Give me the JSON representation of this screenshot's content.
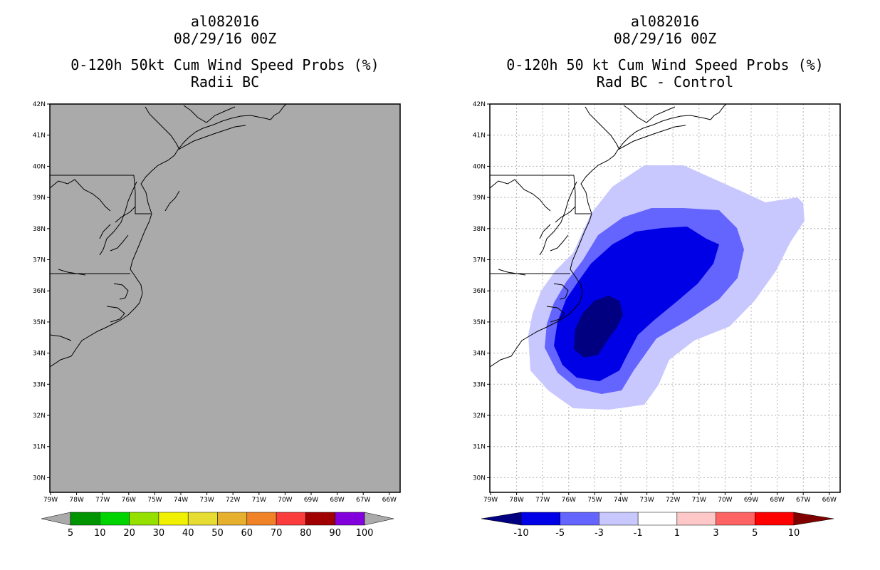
{
  "left_panel": {
    "title_line1": "al082016",
    "title_line2": "08/29/16 00Z",
    "title_line3": "0-120h 50kt Cum Wind Speed Probs (%)",
    "title_line4": "Radii BC",
    "background_color": "#aaaaaa",
    "colorbar": {
      "colors": [
        "#009500",
        "#00d400",
        "#96e000",
        "#f0f000",
        "#e6dc32",
        "#e6af2d",
        "#f08228",
        "#fa3c3c",
        "#a00000",
        "#8200dc"
      ],
      "labels": [
        "5",
        "10",
        "20",
        "30",
        "40",
        "50",
        "60",
        "70",
        "80",
        "90",
        "100"
      ]
    }
  },
  "right_panel": {
    "title_line1": "al082016",
    "title_line2": "08/29/16 00Z",
    "title_line3": "0-120h 50 kt Cum Wind Speed Probs (%)",
    "title_line4": "Rad BC - Control",
    "colorbar": {
      "colors": [
        "#000080",
        "#0000e6",
        "#6464ff",
        "#c8c8ff",
        "#ffffff",
        "#ffc8c8",
        "#ff6464",
        "#ff0000",
        "#800000"
      ],
      "labels": [
        "-10",
        "-5",
        "-3",
        "-1",
        "1",
        "3",
        "5",
        "10"
      ]
    },
    "contours": [
      {
        "level": "-1",
        "color": "#c8c8ff"
      },
      {
        "level": "-3",
        "color": "#6464ff"
      },
      {
        "level": "-5",
        "color": "#0000e6"
      },
      {
        "level": "-10",
        "color": "#000080"
      }
    ]
  },
  "axes": {
    "lat_labels": [
      "42N",
      "41N",
      "40N",
      "39N",
      "38N",
      "37N",
      "36N",
      "35N",
      "34N",
      "33N",
      "32N",
      "31N",
      "30N"
    ],
    "lon_labels": [
      "79W",
      "78W",
      "77W",
      "76W",
      "75W",
      "74W",
      "73W",
      "72W",
      "71W",
      "70W",
      "69W",
      "68W",
      "67W",
      "66W"
    ]
  }
}
